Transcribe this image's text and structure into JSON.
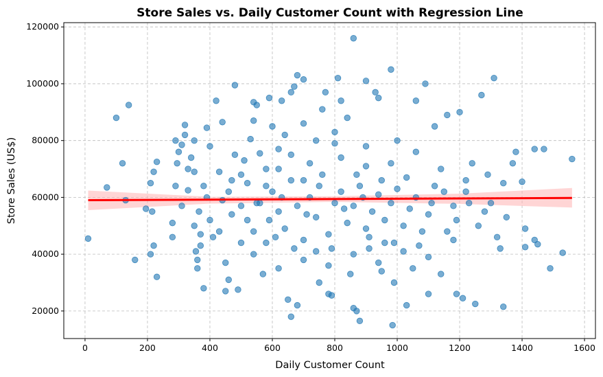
{
  "chart_data": {
    "type": "scatter",
    "title": "Store Sales vs. Daily Customer Count with Regression Line",
    "xlabel": "Daily Customer Count",
    "ylabel": "Store Sales (US$)",
    "xlim": [
      -68,
      1635
    ],
    "ylim": [
      10300,
      121500
    ],
    "xticks": [
      0,
      200,
      400,
      600,
      800,
      1000,
      1200,
      1400,
      1600
    ],
    "yticks": [
      20000,
      40000,
      60000,
      80000,
      100000,
      120000
    ],
    "grid": true,
    "grid_style": "dashed",
    "colors": {
      "points": "#1f77b4",
      "regression_line": "#ff0000",
      "confidence_band": "#ffb3b3"
    },
    "regression": {
      "x": [
        10,
        1560
      ],
      "y": [
        59000,
        59800
      ]
    },
    "confidence_band": {
      "x": [
        10,
        400,
        800,
        1200,
        1560
      ],
      "lower": [
        55500,
        57800,
        58400,
        57700,
        56400
      ],
      "upper": [
        62400,
        60200,
        60400,
        61300,
        63300
      ]
    },
    "points": [
      [
        10,
        45500
      ],
      [
        70,
        63500
      ],
      [
        100,
        88000
      ],
      [
        120,
        72000
      ],
      [
        130,
        59000
      ],
      [
        140,
        92500
      ],
      [
        160,
        38000
      ],
      [
        195,
        56000
      ],
      [
        210,
        40000
      ],
      [
        210,
        65000
      ],
      [
        215,
        55000
      ],
      [
        220,
        69000
      ],
      [
        220,
        43000
      ],
      [
        230,
        72500
      ],
      [
        230,
        32000
      ],
      [
        280,
        46000
      ],
      [
        280,
        51000
      ],
      [
        290,
        80000
      ],
      [
        290,
        64000
      ],
      [
        295,
        72000
      ],
      [
        300,
        76000
      ],
      [
        310,
        78500
      ],
      [
        310,
        57000
      ],
      [
        320,
        82000
      ],
      [
        320,
        85500
      ],
      [
        330,
        70000
      ],
      [
        330,
        62500
      ],
      [
        340,
        74000
      ],
      [
        350,
        69000
      ],
      [
        350,
        80000
      ],
      [
        355,
        41000
      ],
      [
        360,
        38000
      ],
      [
        360,
        35000
      ],
      [
        365,
        55000
      ],
      [
        370,
        47000
      ],
      [
        370,
        43000
      ],
      [
        380,
        28000
      ],
      [
        380,
        64000
      ],
      [
        390,
        84500
      ],
      [
        400,
        78000
      ],
      [
        410,
        46000
      ],
      [
        420,
        94000
      ],
      [
        430,
        69000
      ],
      [
        440,
        86500
      ],
      [
        440,
        59000
      ],
      [
        450,
        27000
      ],
      [
        450,
        37000
      ],
      [
        460,
        31000
      ],
      [
        470,
        54000
      ],
      [
        480,
        99500
      ],
      [
        480,
        75000
      ],
      [
        490,
        27500
      ],
      [
        500,
        68000
      ],
      [
        500,
        44000
      ],
      [
        520,
        65000
      ],
      [
        530,
        80500
      ],
      [
        540,
        87000
      ],
      [
        540,
        93500
      ],
      [
        550,
        92500
      ],
      [
        560,
        75500
      ],
      [
        570,
        33000
      ],
      [
        580,
        64000
      ],
      [
        590,
        95000
      ],
      [
        600,
        85000
      ],
      [
        610,
        46000
      ],
      [
        620,
        77000
      ],
      [
        630,
        94000
      ],
      [
        650,
        24000
      ],
      [
        660,
        18000
      ],
      [
        660,
        97000
      ],
      [
        670,
        99000
      ],
      [
        680,
        103000
      ],
      [
        680,
        22000
      ],
      [
        700,
        101500
      ],
      [
        700,
        86000
      ],
      [
        720,
        72000
      ],
      [
        740,
        41000
      ],
      [
        760,
        91000
      ],
      [
        770,
        97000
      ],
      [
        780,
        26000
      ],
      [
        790,
        25500
      ],
      [
        800,
        79000
      ],
      [
        810,
        102000
      ],
      [
        820,
        94000
      ],
      [
        840,
        88000
      ],
      [
        860,
        116000
      ],
      [
        860,
        21000
      ],
      [
        870,
        20000
      ],
      [
        880,
        16500
      ],
      [
        890,
        60000
      ],
      [
        900,
        101000
      ],
      [
        910,
        42000
      ],
      [
        930,
        97000
      ],
      [
        940,
        95000
      ],
      [
        960,
        44000
      ],
      [
        980,
        105000
      ],
      [
        985,
        15000
      ],
      [
        990,
        30000
      ],
      [
        1030,
        22000
      ],
      [
        1060,
        94000
      ],
      [
        1090,
        100000
      ],
      [
        1100,
        26000
      ],
      [
        1120,
        85000
      ],
      [
        1140,
        33000
      ],
      [
        1160,
        89000
      ],
      [
        1180,
        57000
      ],
      [
        1190,
        26000
      ],
      [
        1200,
        90000
      ],
      [
        1210,
        24500
      ],
      [
        1220,
        66000
      ],
      [
        1250,
        22500
      ],
      [
        1270,
        96000
      ],
      [
        1300,
        58000
      ],
      [
        1310,
        102000
      ],
      [
        1320,
        46000
      ],
      [
        1330,
        42000
      ],
      [
        1340,
        21500
      ],
      [
        1340,
        65000
      ],
      [
        1350,
        53000
      ],
      [
        1370,
        72000
      ],
      [
        1380,
        76000
      ],
      [
        1400,
        65500
      ],
      [
        1410,
        42500
      ],
      [
        1410,
        49000
      ],
      [
        1440,
        77000
      ],
      [
        1440,
        45000
      ],
      [
        1450,
        43500
      ],
      [
        1470,
        77000
      ],
      [
        1490,
        35000
      ],
      [
        1530,
        40500
      ],
      [
        1560,
        73500
      ],
      [
        520,
        52000
      ],
      [
        540,
        48000
      ],
      [
        560,
        58000
      ],
      [
        580,
        44000
      ],
      [
        600,
        62000
      ],
      [
        620,
        55000
      ],
      [
        640,
        49000
      ],
      [
        660,
        66000
      ],
      [
        680,
        57000
      ],
      [
        700,
        45000
      ],
      [
        720,
        60000
      ],
      [
        740,
        53000
      ],
      [
        760,
        68000
      ],
      [
        780,
        47000
      ],
      [
        800,
        58000
      ],
      [
        820,
        62000
      ],
      [
        840,
        51000
      ],
      [
        860,
        57000
      ],
      [
        880,
        64000
      ],
      [
        900,
        49000
      ],
      [
        920,
        55000
      ],
      [
        940,
        61000
      ],
      [
        960,
        52000
      ],
      [
        980,
        58000
      ],
      [
        1000,
        63000
      ],
      [
        1020,
        50000
      ],
      [
        1040,
        56000
      ],
      [
        1060,
        60000
      ],
      [
        1080,
        48000
      ],
      [
        1100,
        54000
      ],
      [
        620,
        70000
      ],
      [
        660,
        75000
      ],
      [
        700,
        38000
      ],
      [
        740,
        80000
      ],
      [
        780,
        36000
      ],
      [
        820,
        74000
      ],
      [
        860,
        40000
      ],
      [
        900,
        78000
      ],
      [
        940,
        37000
      ],
      [
        980,
        72000
      ],
      [
        1020,
        41000
      ],
      [
        1060,
        76000
      ],
      [
        1100,
        39000
      ],
      [
        1140,
        70000
      ],
      [
        1180,
        45000
      ],
      [
        1220,
        62000
      ],
      [
        1260,
        50000
      ],
      [
        1290,
        68000
      ],
      [
        460,
        62000
      ],
      [
        500,
        57000
      ],
      [
        540,
        40000
      ],
      [
        580,
        70000
      ],
      [
        620,
        35000
      ],
      [
        640,
        82000
      ],
      [
        700,
        66000
      ],
      [
        750,
        30000
      ],
      [
        800,
        83000
      ],
      [
        850,
        33000
      ],
      [
        900,
        71000
      ],
      [
        950,
        34000
      ],
      [
        1000,
        80000
      ],
      [
        1050,
        35000
      ],
      [
        1120,
        64000
      ],
      [
        1160,
        48000
      ],
      [
        1240,
        72000
      ],
      [
        1280,
        55000
      ],
      [
        400,
        52000
      ],
      [
        430,
        48000
      ],
      [
        470,
        66000
      ],
      [
        510,
        73000
      ],
      [
        550,
        58000
      ],
      [
        590,
        52000
      ],
      [
        630,
        60000
      ],
      [
        670,
        42000
      ],
      [
        710,
        54000
      ],
      [
        750,
        64000
      ],
      [
        790,
        42000
      ],
      [
        830,
        56000
      ],
      [
        870,
        68000
      ],
      [
        910,
        46000
      ],
      [
        950,
        66000
      ],
      [
        990,
        44000
      ],
      [
        1030,
        67000
      ],
      [
        1070,
        43000
      ],
      [
        1110,
        58000
      ],
      [
        1150,
        62000
      ],
      [
        1190,
        52000
      ],
      [
        1230,
        58000
      ],
      [
        350,
        50000
      ],
      [
        390,
        60000
      ]
    ]
  }
}
